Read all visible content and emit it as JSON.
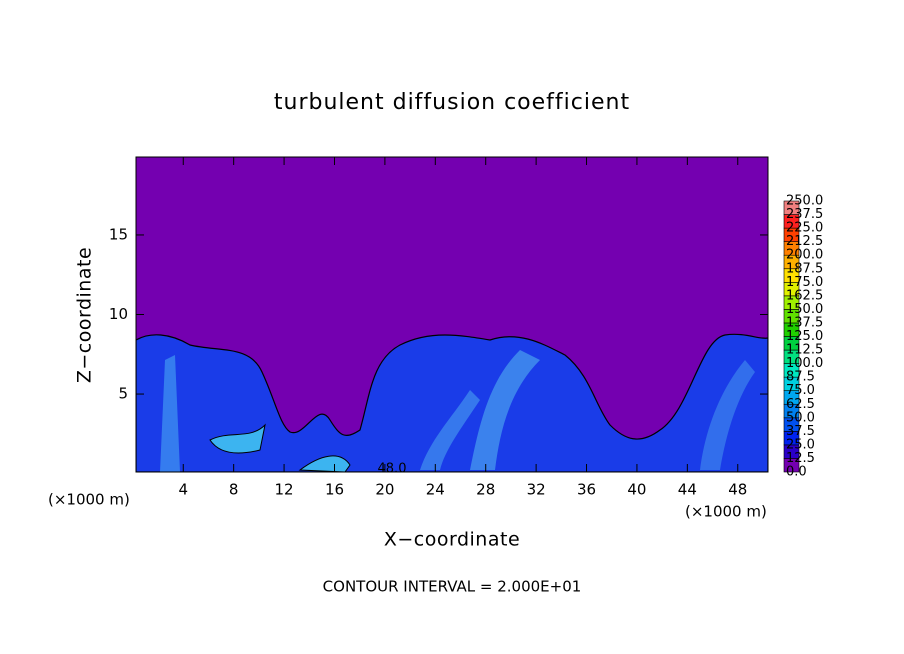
{
  "chart_data": {
    "type": "contour",
    "title": "turbulent diffusion coefficient",
    "x_label": "X−coordinate",
    "y_label": "Z−coordinate",
    "x_unit_left": "(×1000 m)",
    "x_unit_right": "(×1000 m)",
    "footer": "CONTOUR INTERVAL = 2.000E+01",
    "annotation": "48.0",
    "xlim": [
      0.25,
      50.4
    ],
    "ylim": [
      0.1,
      19.9
    ],
    "xticks": [
      4,
      8,
      12,
      16,
      20,
      24,
      28,
      32,
      36,
      40,
      44,
      48
    ],
    "yticks": [
      5,
      10,
      15
    ],
    "background_color": "#7400b0",
    "colorbar": {
      "levels": [
        {
          "value": 0,
          "label": "0.0"
        },
        {
          "value": 12.5,
          "label": "12.5"
        },
        {
          "value": 25,
          "label": "25.0"
        },
        {
          "value": 37.5,
          "label": "37.5"
        },
        {
          "value": 50,
          "label": "50.0"
        },
        {
          "value": 62.5,
          "label": "62.5"
        },
        {
          "value": 75,
          "label": "75.0"
        },
        {
          "value": 87.5,
          "label": "87.5"
        },
        {
          "value": 100,
          "label": "100.0"
        },
        {
          "value": 112.5,
          "label": "112.5"
        },
        {
          "value": 125,
          "label": "125.0"
        },
        {
          "value": 137.5,
          "label": "137.5"
        },
        {
          "value": 150,
          "label": "150.0"
        },
        {
          "value": 162.5,
          "label": "162.5"
        },
        {
          "value": 175,
          "label": "175.0"
        },
        {
          "value": 187.5,
          "label": "187.5"
        },
        {
          "value": 200,
          "label": "200.0"
        },
        {
          "value": 212.5,
          "label": "212.5"
        },
        {
          "value": 225,
          "label": "225.0"
        },
        {
          "value": 237.5,
          "label": "237.5"
        },
        {
          "value": 250,
          "label": "250.0"
        }
      ],
      "colors": [
        "#7400b0",
        "#2a00c8",
        "#0022f0",
        "#0050f0",
        "#0080f0",
        "#00a8f0",
        "#00d0e0",
        "#00e8c0",
        "#00e080",
        "#00d040",
        "#20d000",
        "#60e000",
        "#a0f000",
        "#e0f000",
        "#ffe000",
        "#ffb000",
        "#ff8000",
        "#ff4000",
        "#ff2020",
        "#f08080"
      ]
    }
  }
}
